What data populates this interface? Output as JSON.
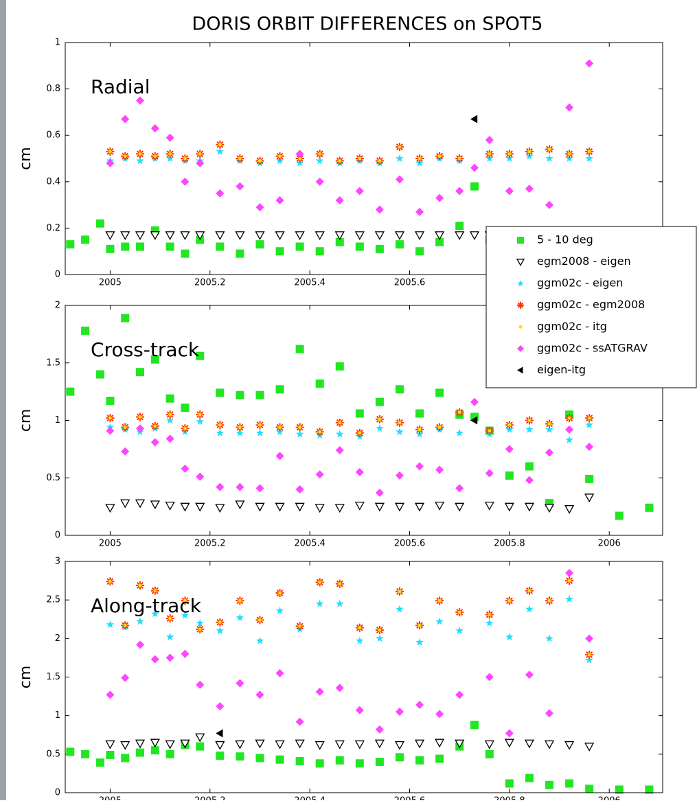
{
  "title": "DORIS ORBIT DIFFERENCES on SPOT5",
  "chart_data": [
    {
      "type": "scatter",
      "annotation": "Radial",
      "ylabel": "cm",
      "legend": "right",
      "xlim": [
        2004.91,
        2006.107
      ],
      "xticks": [
        2005,
        2005.2,
        2005.4,
        2005.6,
        2005.8,
        2006
      ],
      "ylim": [
        0,
        1
      ],
      "yticks": [
        0,
        0.2,
        0.4,
        0.6,
        0.8,
        1
      ],
      "x": [
        2004.92,
        2004.95,
        2004.98,
        2005.0,
        2005.03,
        2005.06,
        2005.09,
        2005.12,
        2005.15,
        2005.18,
        2005.22,
        2005.26,
        2005.3,
        2005.34,
        2005.38,
        2005.42,
        2005.46,
        2005.5,
        2005.54,
        2005.58,
        2005.62,
        2005.66,
        2005.7,
        2005.73,
        2005.76,
        2005.8,
        2005.84,
        2005.88,
        2005.92,
        2005.96,
        2006.02,
        2006.08
      ],
      "series": [
        {
          "name": "5 - 10 deg",
          "color": "#22e622",
          "marker": "square",
          "values": [
            0.13,
            0.15,
            0.22,
            0.11,
            0.12,
            0.12,
            0.19,
            0.12,
            0.09,
            0.15,
            0.12,
            0.09,
            0.13,
            0.1,
            0.12,
            0.1,
            0.14,
            0.12,
            0.11,
            0.13,
            0.1,
            0.14,
            0.21,
            0.38,
            0.15,
            0.16,
            0.13,
            0.14,
            0.15,
            0.12,
            null,
            null
          ]
        },
        {
          "name": "egm2008 - eigen",
          "color": "#000000",
          "marker": "triangle-down",
          "values": [
            null,
            null,
            null,
            0.17,
            0.17,
            0.17,
            0.17,
            0.17,
            0.17,
            0.17,
            0.17,
            0.17,
            0.17,
            0.17,
            0.17,
            0.17,
            0.17,
            0.17,
            0.17,
            0.17,
            0.17,
            0.17,
            0.17,
            0.17,
            0.17,
            0.17,
            0.17,
            0.17,
            0.17,
            0.17,
            null,
            null
          ]
        },
        {
          "name": "ggm02c - eigen",
          "color": "#22ddff",
          "marker": "star",
          "values": [
            null,
            null,
            null,
            0.49,
            0.5,
            0.49,
            0.5,
            0.5,
            0.49,
            0.49,
            0.53,
            0.49,
            0.48,
            0.49,
            0.48,
            0.49,
            0.48,
            0.49,
            0.48,
            0.5,
            0.48,
            0.5,
            0.49,
            null,
            0.5,
            0.5,
            0.51,
            0.5,
            0.5,
            0.5,
            null,
            null
          ]
        },
        {
          "name": "ggm02c - egm2008",
          "color": "#ff3300",
          "marker": "asterisk",
          "values": [
            null,
            null,
            null,
            0.53,
            0.51,
            0.52,
            0.51,
            0.52,
            0.5,
            0.52,
            0.56,
            0.5,
            0.49,
            0.51,
            0.5,
            0.52,
            0.49,
            0.5,
            0.49,
            0.55,
            0.5,
            0.51,
            0.5,
            null,
            0.52,
            0.52,
            0.53,
            0.54,
            0.52,
            0.53,
            null,
            null
          ]
        },
        {
          "name": "ggm02c - itg",
          "color": "#ffdd00",
          "marker": "dot",
          "values": [
            null,
            null,
            null,
            0.53,
            0.51,
            0.52,
            0.51,
            0.52,
            0.5,
            0.52,
            0.56,
            0.5,
            0.49,
            0.51,
            0.5,
            0.52,
            0.49,
            0.5,
            0.49,
            0.55,
            0.5,
            0.51,
            0.5,
            null,
            0.52,
            0.52,
            0.53,
            0.54,
            0.52,
            0.53,
            null,
            null
          ]
        },
        {
          "name": "ggm02c - ssATGRAV",
          "color": "#ff44ff",
          "marker": "diamond",
          "values": [
            null,
            null,
            null,
            0.48,
            0.67,
            0.75,
            0.63,
            0.59,
            0.4,
            0.48,
            0.35,
            0.38,
            0.29,
            0.32,
            0.52,
            0.4,
            0.32,
            0.36,
            0.28,
            0.41,
            0.27,
            0.33,
            0.36,
            0.46,
            0.58,
            0.36,
            0.37,
            0.3,
            0.72,
            0.91,
            null,
            null
          ]
        },
        {
          "name": "eigen-itg",
          "color": "#000000",
          "marker": "triangle-left",
          "values": [
            null,
            null,
            null,
            null,
            null,
            null,
            null,
            null,
            null,
            null,
            null,
            null,
            null,
            null,
            null,
            null,
            null,
            null,
            null,
            null,
            null,
            null,
            null,
            0.67,
            null,
            null,
            null,
            null,
            null,
            null,
            null,
            null
          ]
        }
      ]
    },
    {
      "type": "scatter",
      "annotation": "Cross-track",
      "ylabel": "cm",
      "xlim": [
        2004.91,
        2006.107
      ],
      "xticks": [
        2005,
        2005.2,
        2005.4,
        2005.6,
        2005.8,
        2006
      ],
      "ylim": [
        0,
        2
      ],
      "yticks": [
        0,
        0.5,
        1,
        1.5,
        2
      ],
      "x": [
        2004.92,
        2004.95,
        2004.98,
        2005.0,
        2005.03,
        2005.06,
        2005.09,
        2005.12,
        2005.15,
        2005.18,
        2005.22,
        2005.26,
        2005.3,
        2005.34,
        2005.38,
        2005.42,
        2005.46,
        2005.5,
        2005.54,
        2005.58,
        2005.62,
        2005.66,
        2005.7,
        2005.73,
        2005.76,
        2005.8,
        2005.84,
        2005.88,
        2005.92,
        2005.96,
        2006.02,
        2006.08
      ],
      "series": [
        {
          "color": "#22e622",
          "marker": "square",
          "values": [
            1.25,
            1.78,
            1.4,
            1.17,
            1.89,
            1.42,
            1.53,
            1.19,
            1.11,
            1.56,
            1.24,
            1.22,
            1.22,
            1.27,
            1.62,
            1.32,
            1.47,
            1.06,
            1.16,
            1.27,
            1.06,
            1.24,
            1.05,
            1.03,
            0.91,
            0.52,
            0.6,
            0.28,
            1.05,
            0.49,
            0.17,
            0.24
          ]
        },
        {
          "color": "#000000",
          "marker": "triangle-down",
          "values": [
            null,
            null,
            null,
            0.24,
            0.28,
            0.28,
            0.27,
            0.26,
            0.25,
            0.25,
            0.24,
            0.27,
            0.25,
            0.25,
            0.25,
            0.24,
            0.24,
            0.26,
            0.25,
            0.25,
            0.25,
            0.26,
            0.25,
            null,
            0.26,
            0.25,
            0.25,
            0.24,
            0.23,
            0.33,
            null,
            null
          ]
        },
        {
          "color": "#22ddff",
          "marker": "star",
          "values": [
            null,
            null,
            null,
            0.94,
            0.92,
            0.9,
            0.93,
            1.0,
            0.9,
            0.99,
            0.89,
            0.89,
            0.89,
            0.9,
            0.88,
            0.87,
            0.88,
            0.86,
            0.93,
            0.9,
            0.88,
            0.92,
            0.89,
            null,
            0.88,
            0.92,
            0.92,
            0.92,
            0.83,
            0.96,
            null,
            null
          ]
        },
        {
          "color": "#ff3300",
          "marker": "asterisk",
          "values": [
            null,
            null,
            null,
            1.02,
            0.94,
            1.03,
            0.95,
            1.05,
            0.93,
            1.05,
            0.96,
            0.94,
            0.96,
            0.94,
            0.94,
            0.9,
            0.98,
            0.89,
            1.01,
            0.98,
            0.92,
            0.94,
            1.07,
            null,
            0.91,
            0.96,
            1.0,
            0.97,
            1.02,
            1.02,
            null,
            null
          ]
        },
        {
          "color": "#ffdd00",
          "marker": "dot",
          "values": [
            null,
            null,
            null,
            1.02,
            0.94,
            1.03,
            0.95,
            1.05,
            0.93,
            1.05,
            0.96,
            0.94,
            0.96,
            0.94,
            0.94,
            0.9,
            0.98,
            0.89,
            1.01,
            0.98,
            0.92,
            0.94,
            1.07,
            null,
            0.91,
            0.96,
            1.0,
            0.97,
            1.02,
            1.02,
            null,
            null
          ]
        },
        {
          "color": "#ff44ff",
          "marker": "diamond",
          "values": [
            null,
            null,
            null,
            0.91,
            0.73,
            0.93,
            0.81,
            0.84,
            0.58,
            0.51,
            0.42,
            0.42,
            0.41,
            0.69,
            0.4,
            0.53,
            0.74,
            0.55,
            0.37,
            0.52,
            0.6,
            0.57,
            0.41,
            1.16,
            0.54,
            0.75,
            0.48,
            0.72,
            0.92,
            0.77,
            null,
            null
          ]
        },
        {
          "color": "#000000",
          "marker": "triangle-left",
          "values": [
            null,
            null,
            null,
            null,
            null,
            null,
            null,
            null,
            null,
            null,
            null,
            null,
            null,
            null,
            null,
            null,
            null,
            null,
            null,
            null,
            null,
            null,
            null,
            1.0,
            null,
            null,
            null,
            null,
            null,
            null,
            null,
            null
          ]
        }
      ]
    },
    {
      "type": "scatter",
      "annotation": "Along-track",
      "ylabel": "cm",
      "xlim": [
        2004.91,
        2006.107
      ],
      "xticks": [
        2005,
        2005.2,
        2005.4,
        2005.6,
        2005.8,
        2006
      ],
      "ylim": [
        0,
        3
      ],
      "yticks": [
        0,
        0.5,
        1,
        1.5,
        2,
        2.5,
        3
      ],
      "x": [
        2004.92,
        2004.95,
        2004.98,
        2005.0,
        2005.03,
        2005.06,
        2005.09,
        2005.12,
        2005.15,
        2005.18,
        2005.22,
        2005.26,
        2005.3,
        2005.34,
        2005.38,
        2005.42,
        2005.46,
        2005.5,
        2005.54,
        2005.58,
        2005.62,
        2005.66,
        2005.7,
        2005.73,
        2005.76,
        2005.8,
        2005.84,
        2005.88,
        2005.92,
        2005.96,
        2006.02,
        2006.08
      ],
      "series": [
        {
          "color": "#22e622",
          "marker": "square",
          "values": [
            0.53,
            0.5,
            0.39,
            0.49,
            0.45,
            0.52,
            0.55,
            0.5,
            0.62,
            0.6,
            0.48,
            0.47,
            0.45,
            0.43,
            0.41,
            0.38,
            0.42,
            0.38,
            0.4,
            0.46,
            0.42,
            0.44,
            0.6,
            0.88,
            0.5,
            0.12,
            0.19,
            0.1,
            0.12,
            0.05,
            0.04,
            0.04
          ]
        },
        {
          "color": "#000000",
          "marker": "triangle-down",
          "values": [
            null,
            null,
            null,
            0.63,
            0.62,
            0.64,
            0.65,
            0.63,
            0.64,
            0.72,
            0.62,
            0.63,
            0.64,
            0.63,
            0.64,
            0.62,
            0.63,
            0.63,
            0.64,
            0.62,
            0.64,
            0.65,
            0.64,
            null,
            0.63,
            0.65,
            0.64,
            0.63,
            0.62,
            0.6,
            null,
            null
          ]
        },
        {
          "color": "#22ddff",
          "marker": "star",
          "values": [
            null,
            null,
            null,
            2.18,
            2.15,
            2.22,
            2.32,
            2.02,
            2.3,
            2.2,
            2.1,
            2.27,
            1.97,
            2.36,
            2.12,
            2.45,
            2.45,
            1.97,
            2.0,
            2.38,
            1.95,
            2.22,
            2.1,
            null,
            2.2,
            2.02,
            2.38,
            2.0,
            2.51,
            1.72,
            null,
            null
          ]
        },
        {
          "color": "#ff3300",
          "marker": "asterisk",
          "values": [
            null,
            null,
            null,
            2.74,
            2.17,
            2.69,
            2.62,
            2.26,
            2.49,
            2.12,
            2.21,
            2.49,
            2.24,
            2.59,
            2.16,
            2.73,
            2.71,
            2.14,
            2.11,
            2.61,
            2.17,
            2.49,
            2.34,
            null,
            2.31,
            2.49,
            2.62,
            2.49,
            2.75,
            1.79,
            null,
            null
          ]
        },
        {
          "color": "#ffdd00",
          "marker": "dot",
          "values": [
            null,
            null,
            null,
            2.74,
            2.17,
            2.69,
            2.62,
            2.26,
            2.49,
            2.12,
            2.21,
            2.49,
            2.24,
            2.59,
            2.16,
            2.73,
            2.71,
            2.14,
            2.11,
            2.61,
            2.17,
            2.49,
            2.34,
            null,
            2.31,
            2.49,
            2.62,
            2.49,
            2.75,
            1.79,
            null,
            null
          ]
        },
        {
          "color": "#ff44ff",
          "marker": "diamond",
          "values": [
            null,
            null,
            null,
            1.27,
            1.49,
            1.92,
            1.73,
            1.75,
            1.8,
            1.4,
            1.12,
            1.42,
            1.27,
            1.55,
            0.92,
            1.31,
            1.36,
            1.07,
            0.82,
            1.05,
            1.14,
            1.02,
            1.27,
            null,
            1.5,
            0.77,
            1.53,
            1.03,
            2.85,
            2.0,
            null,
            null
          ]
        },
        {
          "color": "#000000",
          "marker": "triangle-left",
          "values": [
            null,
            null,
            null,
            null,
            null,
            null,
            null,
            null,
            null,
            null,
            0.77,
            null,
            null,
            null,
            null,
            null,
            null,
            null,
            null,
            null,
            null,
            null,
            null,
            null,
            null,
            null,
            null,
            null,
            null,
            null,
            null,
            null
          ]
        }
      ]
    }
  ]
}
